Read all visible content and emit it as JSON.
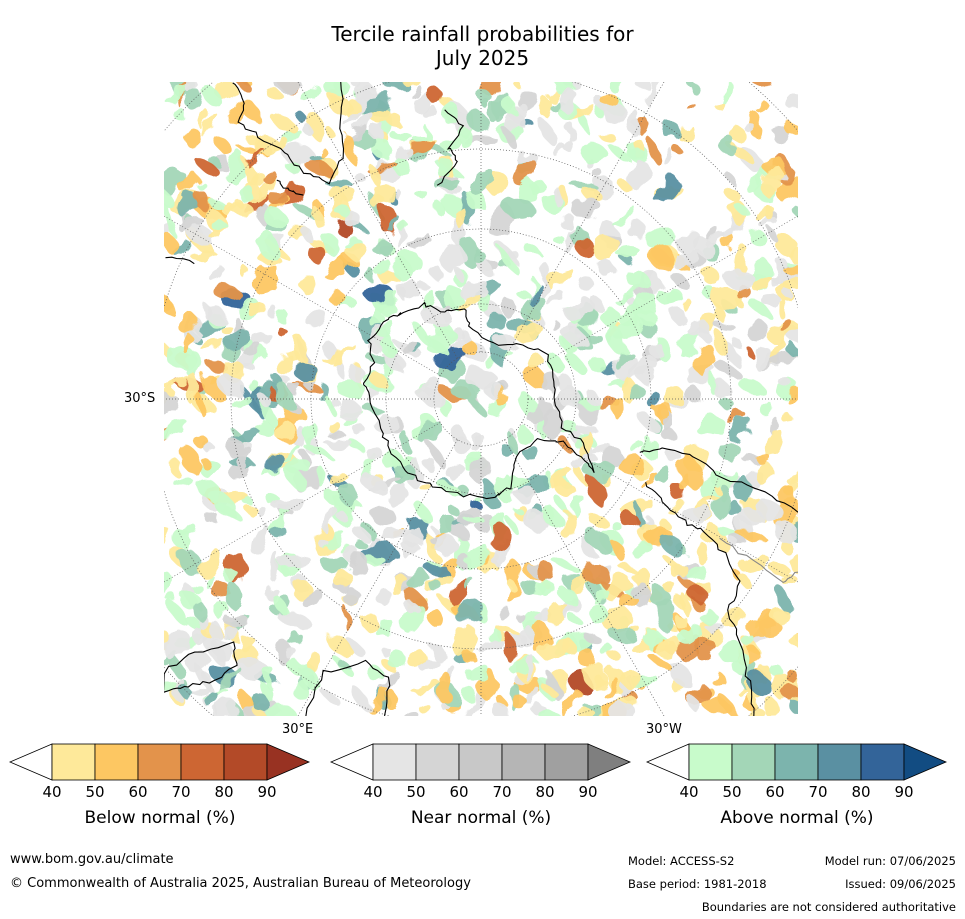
{
  "title": {
    "line1": "Tercile rainfall probabilities for",
    "line2": "July 2025"
  },
  "map": {
    "projection": "south-polar-stereographic",
    "lat_labels": {
      "left": "30°S",
      "bottom_left": "30°E",
      "bottom_right": "30°W"
    }
  },
  "colorbars": [
    {
      "name": "below",
      "title": "Below normal (%)",
      "ticks": [
        "40",
        "50",
        "60",
        "70",
        "80",
        "90"
      ],
      "low_color": "#ffffff",
      "colors": [
        "#fee99a",
        "#fdc762",
        "#e3934b",
        "#cd6633",
        "#b34a28"
      ],
      "high_color": "#983222"
    },
    {
      "name": "near",
      "title": "Near normal (%)",
      "ticks": [
        "40",
        "50",
        "60",
        "70",
        "80",
        "90"
      ],
      "low_color": "#ffffff",
      "colors": [
        "#e5e5e5",
        "#d5d5d5",
        "#c8c8c8",
        "#b5b5b5",
        "#a0a0a0"
      ],
      "high_color": "#7f7f7f"
    },
    {
      "name": "above",
      "title": "Above normal (%)",
      "ticks": [
        "40",
        "50",
        "60",
        "70",
        "80",
        "90"
      ],
      "low_color": "#ffffff",
      "colors": [
        "#c8fbcb",
        "#a3d6b7",
        "#7cb4ad",
        "#5a90a2",
        "#336499"
      ],
      "high_color": "#124c82"
    }
  ],
  "footer": {
    "website": "www.bom.gov.au/climate",
    "copyright": "© Commonwealth of Australia 2025, Australian Bureau of Meteorology",
    "model": "Model: ACCESS-S2",
    "base_period": "Base period: 1981-2018",
    "model_run": "Model run: 07/06/2025",
    "issued": "Issued: 09/06/2025",
    "disclaimer": "Boundaries are not considered authoritative"
  }
}
